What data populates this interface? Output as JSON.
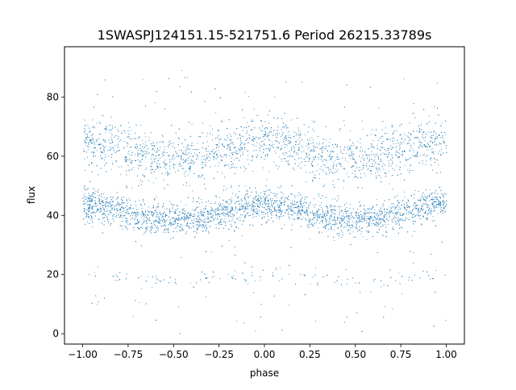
{
  "chart_data": {
    "type": "scatter",
    "title": "1SWASPJ124151.15-521751.6 Period 26215.33789s",
    "xlabel": "phase",
    "ylabel": "flux",
    "xlim": [
      -1.1,
      1.1
    ],
    "ylim": [
      -3.5,
      97
    ],
    "xticks": [
      -1.0,
      -0.75,
      -0.5,
      -0.25,
      0.0,
      0.25,
      0.5,
      0.75,
      1.0
    ],
    "xtick_labels": [
      "−1.00",
      "−0.75",
      "−0.50",
      "−0.25",
      "0.00",
      "0.25",
      "0.50",
      "0.75",
      "1.00"
    ],
    "yticks": [
      0,
      20,
      40,
      60,
      80
    ],
    "ytick_labels": [
      "0",
      "20",
      "40",
      "60",
      "80"
    ],
    "grid": false,
    "legend": "none",
    "marker_color": "#1f77b4",
    "bands": [
      {
        "mean_flux_at_phase_0": 41,
        "amplitude": 2.5,
        "spread": 2.8,
        "share": 0.55
      },
      {
        "mean_flux_at_phase_0": 62,
        "amplitude": 3.0,
        "spread": 4.2,
        "share": 0.38
      },
      {
        "mean_flux_at_phase_0": 19,
        "amplitude": 1.5,
        "spread": 1.3,
        "share": 0.03
      },
      {
        "flux_range": [
          0,
          92
        ],
        "share": 0.04
      }
    ]
  }
}
